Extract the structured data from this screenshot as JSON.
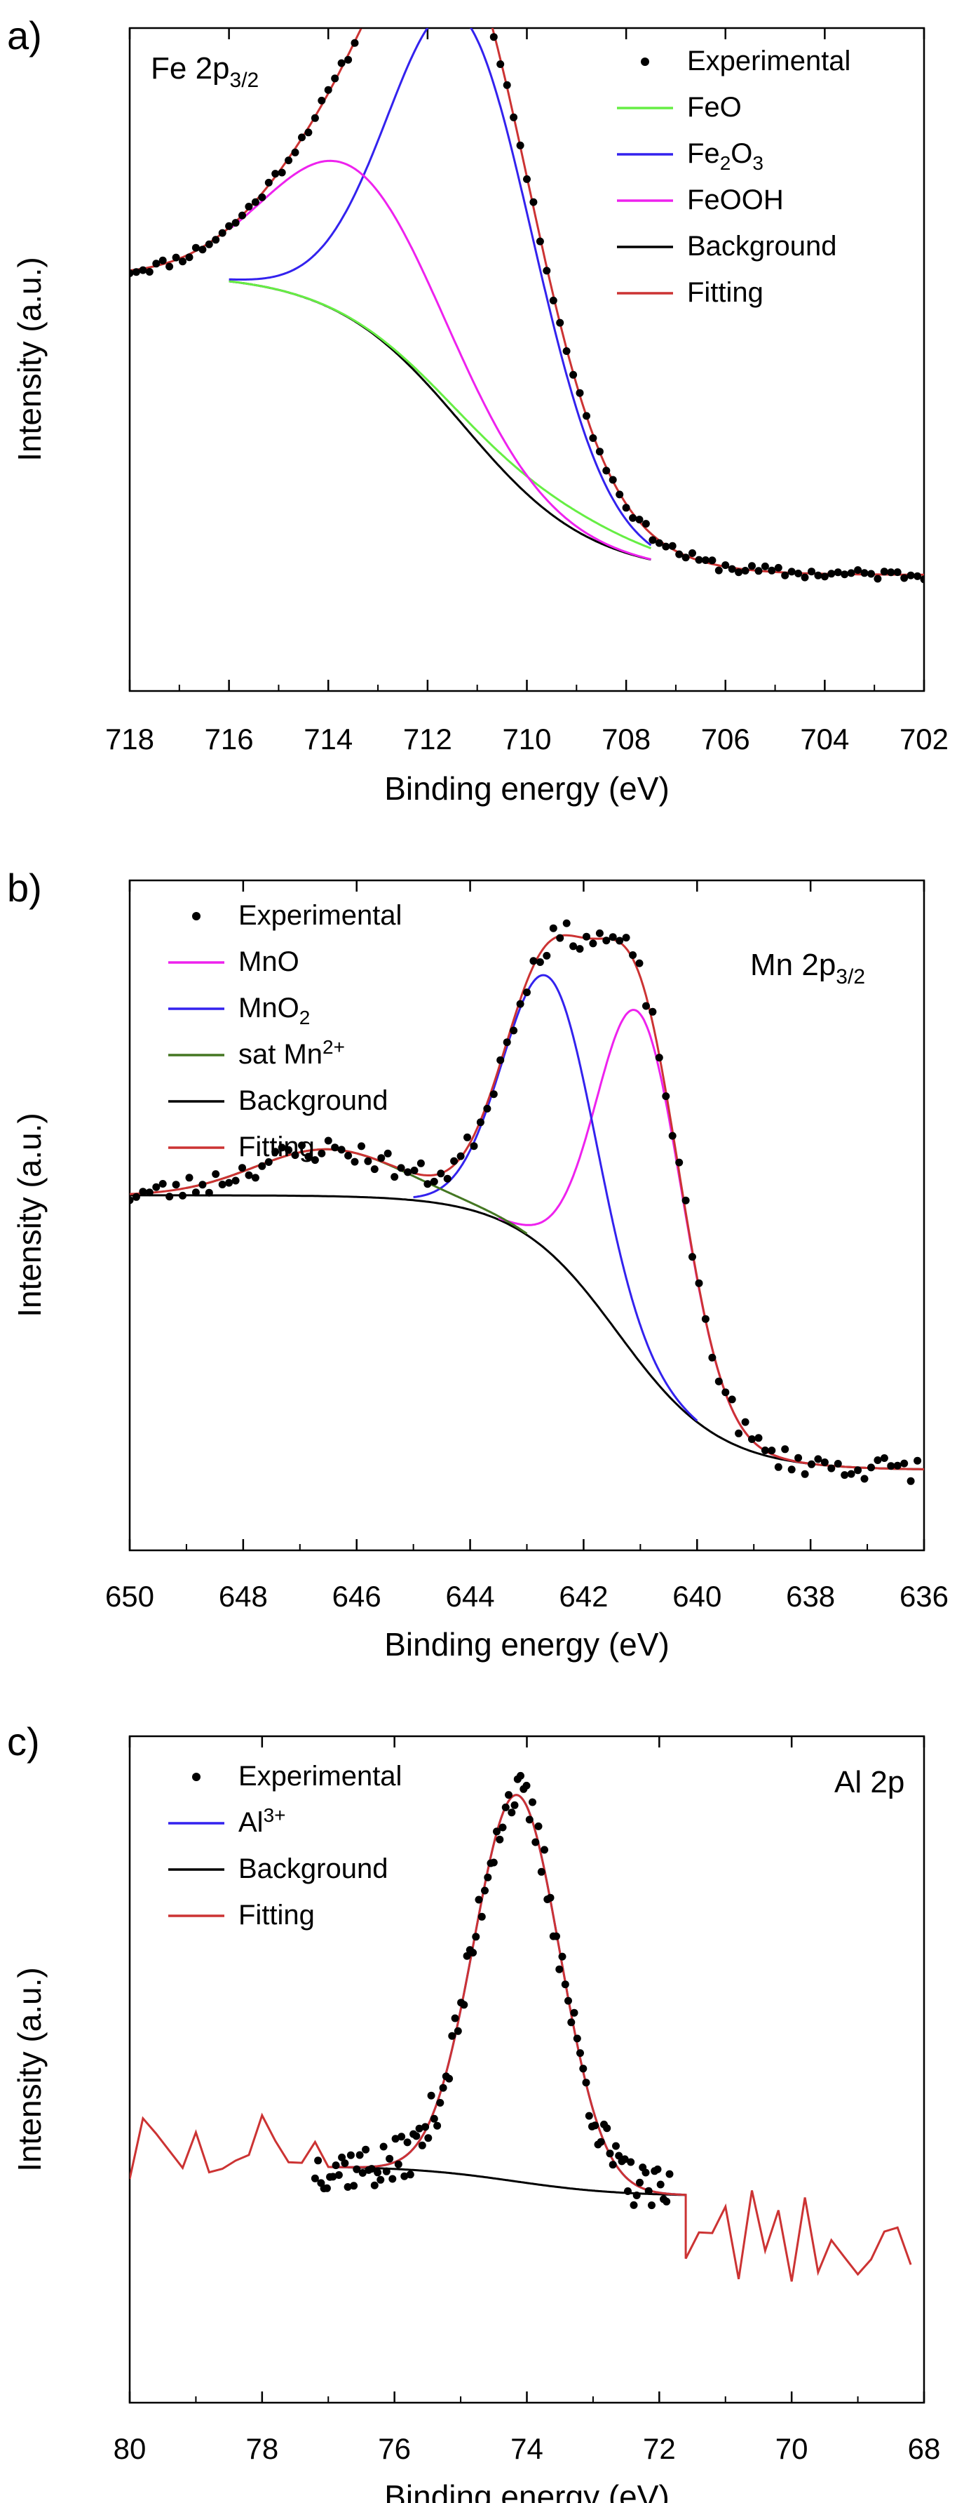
{
  "chart_data": [
    {
      "type": "line",
      "panel_label": "a)",
      "annotation": {
        "main": "Fe 2p",
        "sub": "3/2"
      },
      "xlabel": "Binding energy (eV)",
      "ylabel": "Intensity (a.u.)",
      "xlim": [
        718,
        702
      ],
      "ylim": [
        0,
        1
      ],
      "xticks": [
        718,
        716,
        714,
        712,
        710,
        708,
        706,
        704,
        702
      ],
      "grid": false,
      "legend_position": "top-right",
      "series": [
        {
          "name": "Experimental",
          "kind": "points",
          "color": "#000000",
          "noise": 0.008,
          "seed": 11,
          "components": [
            "Background",
            "FeO",
            "Fe2O3",
            "FeOOH"
          ],
          "range": [
            718,
            702
          ]
        },
        {
          "name": "FeO",
          "name_parts": [
            [
              "FeO",
              ""
            ]
          ],
          "kind": "line",
          "color": "#66EE44",
          "peaks": [
            {
              "center": 709.2,
              "amp": 0.03,
              "sigma": 1.6
            }
          ],
          "base": "Background",
          "range": [
            716,
            707.5
          ]
        },
        {
          "name": "Fe2O3",
          "name_parts": [
            [
              "Fe",
              ""
            ],
            [
              "2",
              "sub"
            ],
            [
              "O",
              ""
            ],
            [
              "3",
              "sub"
            ]
          ],
          "kind": "line",
          "color": "#3322EE",
          "peaks": [
            {
              "center": 711.25,
              "amp": 0.615,
              "sigma": 1.45
            }
          ],
          "base": "Background",
          "range": [
            716,
            707.5
          ]
        },
        {
          "name": "FeOOH",
          "name_parts": [
            [
              "FeOOH",
              ""
            ]
          ],
          "kind": "line",
          "color": "#EE22EE",
          "peaks": [
            {
              "center": 713.5,
              "amp": 0.23,
              "sigma": 1.7
            }
          ],
          "base": "Background",
          "range": [
            716,
            707.5
          ]
        },
        {
          "name": "Background",
          "name_parts": [
            [
              "Background",
              ""
            ]
          ],
          "kind": "line",
          "color": "#000000",
          "shirley": {
            "high": 0.63,
            "low": 0.175,
            "center": 711.3,
            "width": 1.3
          },
          "range": [
            716,
            707.5
          ]
        },
        {
          "name": "Fitting",
          "name_parts": [
            [
              "Fitting",
              ""
            ]
          ],
          "kind": "line",
          "color": "#CC3333",
          "components": [
            "Background",
            "FeO",
            "Fe2O3",
            "FeOOH"
          ],
          "range": [
            718,
            702
          ]
        }
      ],
      "peak_labels": {}
    },
    {
      "type": "line",
      "panel_label": "b)",
      "annotation": {
        "main": "Mn 2p",
        "sub": "3/2"
      },
      "xlabel": "Binding energy (eV)",
      "ylabel": "Intensity (a.u.)",
      "xlim": [
        650,
        636
      ],
      "ylim": [
        0,
        1
      ],
      "xticks": [
        650,
        648,
        646,
        644,
        642,
        640,
        638,
        636
      ],
      "grid": false,
      "legend_position": "top-left",
      "series": [
        {
          "name": "Experimental",
          "kind": "points",
          "color": "#000000",
          "noise": 0.018,
          "seed": 23,
          "components": [
            "Background",
            "MnO",
            "MnO2",
            "sat Mn2+"
          ],
          "range": [
            650,
            636
          ]
        },
        {
          "name": "MnO",
          "name_parts": [
            [
              "MnO",
              ""
            ]
          ],
          "kind": "line",
          "color": "#EE22EE",
          "peaks": [
            {
              "center": 641.0,
              "amp": 0.52,
              "sigma": 0.75
            }
          ],
          "base": "Background",
          "range": [
            643.5,
            638
          ]
        },
        {
          "name": "MnO2",
          "name_parts": [
            [
              "MnO",
              ""
            ],
            [
              "2",
              "sub"
            ]
          ],
          "kind": "line",
          "color": "#3322EE",
          "peaks": [
            {
              "center": 642.6,
              "amp": 0.41,
              "sigma": 0.8
            }
          ],
          "base": "Background",
          "range": [
            645,
            640
          ]
        },
        {
          "name": "sat Mn2+",
          "name_parts": [
            [
              "sat Mn",
              ""
            ],
            [
              "2+",
              "sup"
            ]
          ],
          "kind": "line",
          "color": "#447722",
          "peaks": [
            {
              "center": 646.5,
              "amp": 0.07,
              "sigma": 1.3
            }
          ],
          "base": "Background",
          "range": [
            649,
            643
          ]
        },
        {
          "name": "Background",
          "name_parts": [
            [
              "Background",
              ""
            ]
          ],
          "kind": "line",
          "color": "#000000",
          "shirley": {
            "high": 0.53,
            "low": 0.12,
            "center": 641.4,
            "width": 0.9
          },
          "range": [
            650,
            636
          ]
        },
        {
          "name": "Fitting",
          "name_parts": [
            [
              "Fitting",
              ""
            ]
          ],
          "kind": "line",
          "color": "#CC3333",
          "components": [
            "Background",
            "MnO",
            "MnO2",
            "sat Mn2+"
          ],
          "range": [
            650,
            636
          ]
        }
      ],
      "peak_labels": {}
    },
    {
      "type": "line",
      "panel_label": "c)",
      "annotation": {
        "main": "Al 2p",
        "sub": ""
      },
      "xlabel": "Binding energy (eV)",
      "ylabel": "Intensity (a.u.)",
      "xlim": [
        80,
        68
      ],
      "ylim": [
        0,
        1
      ],
      "xticks": [
        80,
        78,
        76,
        74,
        72,
        70,
        68
      ],
      "grid": false,
      "legend_position": "top-left",
      "series": [
        {
          "name": "Experimental",
          "kind": "points",
          "color": "#000000",
          "noise": 0.035,
          "seed": 37,
          "components": [
            "Background",
            "Al3+"
          ],
          "range": [
            77.2,
            71.8
          ]
        },
        {
          "name": "Al3+",
          "name_parts": [
            [
              "Al",
              ""
            ],
            [
              "3+",
              "sup"
            ]
          ],
          "kind": "line",
          "color": "#3322EE",
          "peaks": [
            {
              "center": 74.15,
              "amp": 0.58,
              "sigma": 0.65
            }
          ],
          "base": "Background",
          "range": [
            77,
            71.6
          ]
        },
        {
          "name": "Background",
          "name_parts": [
            [
              "Background",
              ""
            ]
          ],
          "kind": "line",
          "color": "#000000",
          "shirley": {
            "high": 0.355,
            "low": 0.31,
            "center": 74.2,
            "width": 0.8
          },
          "range": [
            77,
            71.6
          ]
        },
        {
          "name": "Fitting",
          "name_parts": [
            [
              "Fitting",
              ""
            ]
          ],
          "kind": "line",
          "color": "#CC3333",
          "components": [
            "Background",
            "Al3+"
          ],
          "range": [
            77,
            71.6
          ],
          "noisy_tails": {
            "left": [
              80,
              77
            ],
            "right": [
              71.6,
              68
            ],
            "level_left": 0.37,
            "level_right": 0.25,
            "amp": 0.07,
            "seed": 51
          }
        }
      ],
      "peak_labels": {}
    }
  ]
}
